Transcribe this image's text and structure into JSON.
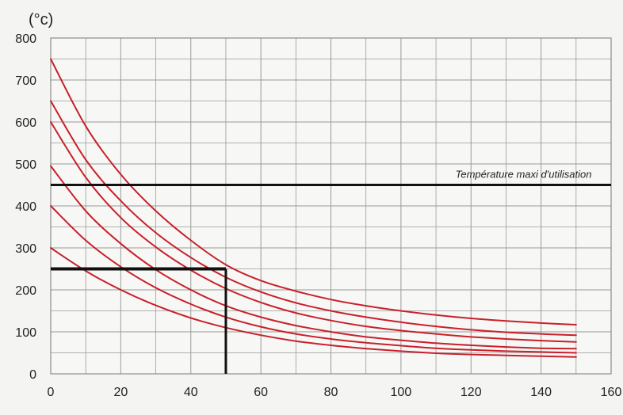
{
  "chart_data": {
    "type": "line",
    "ylabel": "(°c)",
    "xlabel": "",
    "xlim": [
      0,
      160
    ],
    "ylim": [
      0,
      800
    ],
    "x_ticks": [
      "0",
      "20",
      "40",
      "60",
      "80",
      "100",
      "120",
      "140",
      "160"
    ],
    "y_ticks": [
      "0",
      "100",
      "200",
      "300",
      "400",
      "500",
      "600",
      "700",
      "800"
    ],
    "grid": true,
    "colors": {
      "curve": "#c8202a",
      "reference": "#111111",
      "grid": "#9a9a9a",
      "plot_bg": "#f7f7f5"
    },
    "series": [
      {
        "values": [
          [
            0,
            750
          ],
          [
            10,
            590
          ],
          [
            20,
            475
          ],
          [
            30,
            388
          ],
          [
            40,
            318
          ],
          [
            50,
            260
          ],
          [
            60,
            222
          ],
          [
            70,
            197
          ],
          [
            80,
            177
          ],
          [
            90,
            162
          ],
          [
            100,
            150
          ],
          [
            110,
            140
          ],
          [
            120,
            132
          ],
          [
            130,
            126
          ],
          [
            140,
            121
          ],
          [
            150,
            117
          ]
        ]
      },
      {
        "values": [
          [
            0,
            650
          ],
          [
            10,
            510
          ],
          [
            20,
            412
          ],
          [
            30,
            336
          ],
          [
            40,
            277
          ],
          [
            50,
            230
          ],
          [
            60,
            195
          ],
          [
            70,
            169
          ],
          [
            80,
            150
          ],
          [
            90,
            135
          ],
          [
            100,
            123
          ],
          [
            110,
            113
          ],
          [
            120,
            105
          ],
          [
            130,
            99
          ],
          [
            140,
            95
          ],
          [
            150,
            92
          ]
        ]
      },
      {
        "values": [
          [
            0,
            600
          ],
          [
            10,
            468
          ],
          [
            20,
            372
          ],
          [
            30,
            302
          ],
          [
            40,
            247
          ],
          [
            50,
            203
          ],
          [
            60,
            170
          ],
          [
            70,
            145
          ],
          [
            80,
            127
          ],
          [
            90,
            113
          ],
          [
            100,
            103
          ],
          [
            110,
            95
          ],
          [
            120,
            88
          ],
          [
            130,
            83
          ],
          [
            140,
            79
          ],
          [
            150,
            76
          ]
        ]
      },
      {
        "values": [
          [
            0,
            495
          ],
          [
            10,
            388
          ],
          [
            20,
            310
          ],
          [
            30,
            248
          ],
          [
            40,
            200
          ],
          [
            50,
            162
          ],
          [
            60,
            135
          ],
          [
            70,
            115
          ],
          [
            80,
            100
          ],
          [
            90,
            88
          ],
          [
            100,
            80
          ],
          [
            110,
            73
          ],
          [
            120,
            68
          ],
          [
            130,
            64
          ],
          [
            140,
            61
          ],
          [
            150,
            60
          ]
        ]
      },
      {
        "values": [
          [
            0,
            400
          ],
          [
            10,
            318
          ],
          [
            20,
            255
          ],
          [
            30,
            205
          ],
          [
            40,
            166
          ],
          [
            50,
            135
          ],
          [
            60,
            112
          ],
          [
            70,
            95
          ],
          [
            80,
            83
          ],
          [
            90,
            74
          ],
          [
            100,
            67
          ],
          [
            110,
            61
          ],
          [
            120,
            57
          ],
          [
            130,
            54
          ],
          [
            140,
            52
          ],
          [
            150,
            50
          ]
        ]
      },
      {
        "values": [
          [
            0,
            300
          ],
          [
            10,
            245
          ],
          [
            20,
            200
          ],
          [
            30,
            163
          ],
          [
            40,
            133
          ],
          [
            50,
            110
          ],
          [
            60,
            92
          ],
          [
            70,
            78
          ],
          [
            80,
            68
          ],
          [
            90,
            60
          ],
          [
            100,
            54
          ],
          [
            110,
            49
          ],
          [
            120,
            46
          ],
          [
            130,
            44
          ],
          [
            140,
            42
          ],
          [
            150,
            40
          ]
        ]
      }
    ],
    "reference_lines": [
      {
        "orientation": "horizontal",
        "value": 450,
        "label": "Température maxi d'utilisation"
      },
      {
        "orientation": "horizontal",
        "value": 250,
        "from": 0,
        "to": 50
      },
      {
        "orientation": "vertical",
        "value": 50,
        "from": 0,
        "to": 250
      }
    ]
  }
}
